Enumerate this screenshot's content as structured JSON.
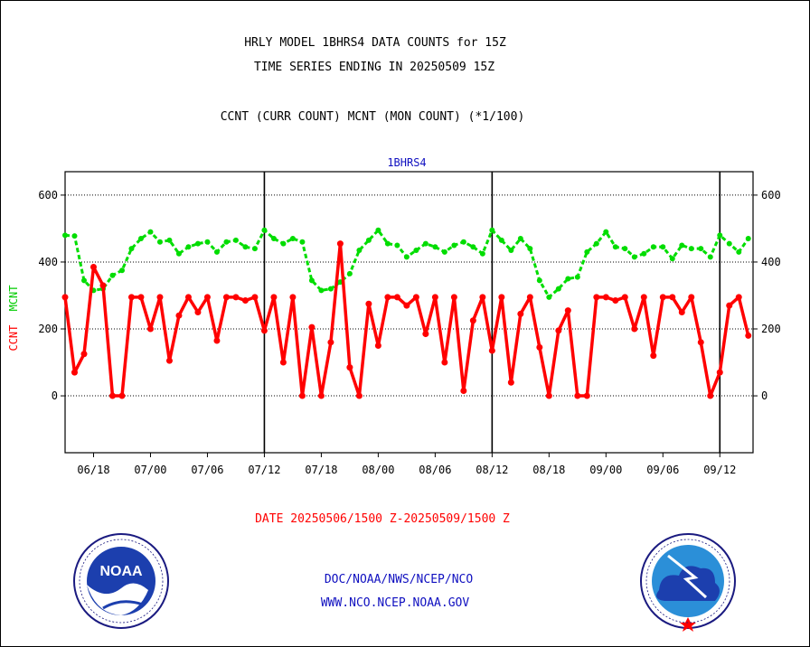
{
  "header": {
    "line1": "HRLY MODEL 1BHRS4 DATA COUNTS for 15Z",
    "line2": "TIME SERIES ENDING IN 20250509 15Z",
    "line3": "CCNT (CURR COUNT) MCNT (MON COUNT) (*1/100)"
  },
  "footer": {
    "date_range": "DATE 20250506/1500 Z-20250509/1500 Z",
    "org": "DOC/NOAA/NWS/NCEP/NCO",
    "url": "WWW.NCO.NCEP.NOAA.GOV"
  },
  "logos": {
    "left": {
      "name": "noaa-logo",
      "text": "NOAA",
      "seal_text": "NATIONAL OCEANIC AND ATMOSPHERIC ADMINISTRATION · U.S. DEPARTMENT OF COMMERCE"
    },
    "right": {
      "name": "nws-logo",
      "seal_text": "NATIONAL WEATHER SERVICE"
    }
  },
  "chart_data": {
    "type": "line",
    "title": "1BHRS4",
    "ylabel_parts": [
      {
        "text": "CCNT",
        "color": "#ff0000"
      },
      {
        "text": "MCNT",
        "color": "#00cc00"
      }
    ],
    "ylim": [
      -170,
      670
    ],
    "yticks": [
      0,
      200,
      400,
      600
    ],
    "grid": true,
    "x_tick_labels": [
      "06/18",
      "07/00",
      "07/06",
      "07/12",
      "07/18",
      "08/00",
      "08/06",
      "08/12",
      "08/18",
      "09/00",
      "09/06",
      "09/12"
    ],
    "x_tick_positions": [
      3,
      9,
      15,
      21,
      27,
      33,
      39,
      45,
      51,
      57,
      63,
      69
    ],
    "day_boundaries": [
      21,
      45,
      69
    ],
    "x_range": [
      0,
      72.5
    ],
    "series": [
      {
        "name": "CCNT",
        "color": "#ff0000",
        "x": [
          0,
          1,
          2,
          3,
          4,
          5,
          6,
          7,
          8,
          9,
          10,
          11,
          12,
          13,
          14,
          15,
          16,
          17,
          18,
          19,
          20,
          21,
          22,
          23,
          24,
          25,
          26,
          27,
          28,
          29,
          30,
          31,
          32,
          33,
          34,
          35,
          36,
          37,
          38,
          39,
          40,
          41,
          42,
          43,
          44,
          45,
          46,
          47,
          48,
          49,
          50,
          51,
          52,
          53,
          54,
          55,
          56,
          57,
          58,
          59,
          60,
          61,
          62,
          63,
          64,
          65,
          66,
          67,
          68,
          69,
          70,
          71,
          72
        ],
        "values": [
          295,
          70,
          125,
          385,
          330,
          0,
          0,
          295,
          295,
          200,
          295,
          105,
          240,
          295,
          250,
          295,
          165,
          295,
          295,
          285,
          295,
          195,
          295,
          100,
          295,
          0,
          205,
          0,
          160,
          455,
          85,
          0,
          275,
          150,
          295,
          295,
          270,
          295,
          185,
          295,
          100,
          295,
          15,
          225,
          295,
          135,
          295,
          40,
          245,
          295,
          145,
          0,
          195,
          255,
          0,
          0,
          295,
          295,
          285,
          295,
          200,
          295,
          120,
          295,
          295,
          250,
          295,
          160,
          0,
          70,
          270,
          295,
          180
        ]
      },
      {
        "name": "MCNT",
        "color": "#00dd00",
        "x": [
          0,
          1,
          2,
          3,
          4,
          5,
          6,
          7,
          8,
          9,
          10,
          11,
          12,
          13,
          14,
          15,
          16,
          17,
          18,
          19,
          20,
          21,
          22,
          23,
          24,
          25,
          26,
          27,
          28,
          29,
          30,
          31,
          32,
          33,
          34,
          35,
          36,
          37,
          38,
          39,
          40,
          41,
          42,
          43,
          44,
          45,
          46,
          47,
          48,
          49,
          50,
          51,
          52,
          53,
          54,
          55,
          56,
          57,
          58,
          59,
          60,
          61,
          62,
          63,
          64,
          65,
          66,
          67,
          68,
          69,
          70,
          71,
          72
        ],
        "values": [
          480,
          478,
          345,
          315,
          320,
          360,
          375,
          440,
          470,
          490,
          460,
          465,
          425,
          445,
          455,
          460,
          430,
          460,
          465,
          445,
          440,
          495,
          470,
          455,
          470,
          460,
          345,
          315,
          320,
          340,
          365,
          435,
          465,
          495,
          455,
          450,
          415,
          435,
          455,
          445,
          430,
          450,
          460,
          445,
          425,
          495,
          465,
          435,
          470,
          440,
          345,
          295,
          320,
          350,
          355,
          430,
          455,
          490,
          445,
          440,
          415,
          425,
          445,
          445,
          410,
          450,
          440,
          440,
          415,
          480,
          455,
          430,
          470
        ]
      }
    ]
  }
}
